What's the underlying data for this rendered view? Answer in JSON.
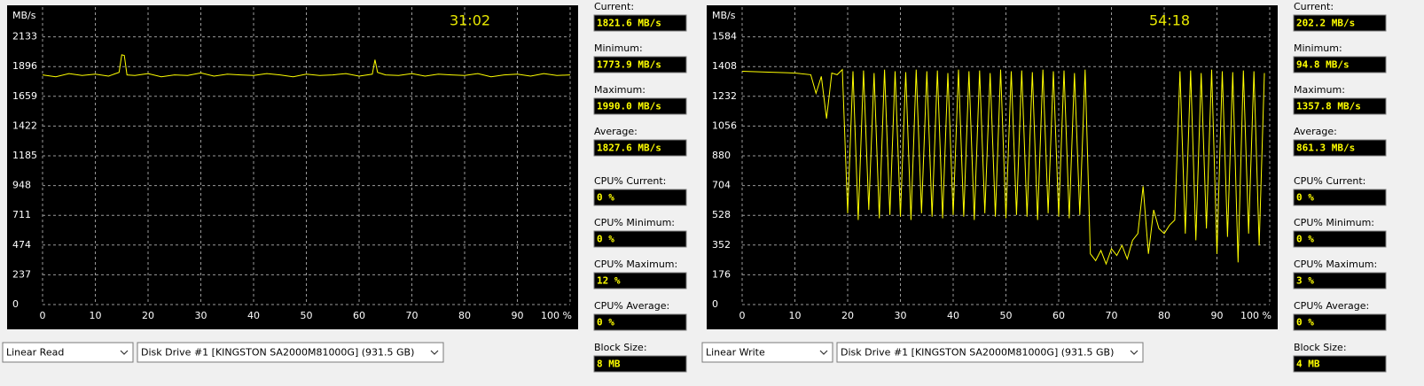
{
  "panels": [
    {
      "chart": {
        "type": "line",
        "ylabel": "MB/s",
        "timer": "31:02",
        "xlim": [
          0,
          100
        ],
        "ylim": [
          0,
          2370
        ],
        "xticks": [
          0,
          10,
          20,
          30,
          40,
          50,
          60,
          70,
          80,
          90,
          {
            "value": 100,
            "label": "100 %"
          }
        ],
        "yticks": [
          0,
          237,
          474,
          711,
          948,
          1185,
          1422,
          1659,
          1896,
          2133
        ],
        "grid": true,
        "series": [
          {
            "color": "#ffff00",
            "x": [
              0,
              2.5,
              5,
              7.5,
              10,
              12.5,
              14.5,
              15,
              15.5,
              16,
              17.5,
              20,
              22.5,
              25,
              27.5,
              30,
              32.5,
              35,
              37.5,
              40,
              42.5,
              45,
              47.5,
              50,
              52.5,
              55,
              57.5,
              60,
              62.5,
              63,
              63.5,
              65,
              67.5,
              70,
              72.5,
              75,
              77.5,
              80,
              82.5,
              85,
              87.5,
              90,
              92.5,
              95,
              97.5,
              100
            ],
            "values": [
              1830,
              1815,
              1840,
              1825,
              1835,
              1820,
              1850,
              1990,
              1985,
              1830,
              1825,
              1840,
              1815,
              1830,
              1825,
              1845,
              1820,
              1835,
              1830,
              1825,
              1840,
              1830,
              1815,
              1835,
              1825,
              1830,
              1840,
              1820,
              1835,
              1950,
              1850,
              1830,
              1825,
              1840,
              1820,
              1835,
              1830,
              1825,
              1840,
              1815,
              1830,
              1835,
              1820,
              1840,
              1825,
              1830
            ]
          }
        ]
      },
      "stats": [
        {
          "label": "Current:",
          "value": "1821.6 MB/s"
        },
        {
          "label": "Minimum:",
          "value": "1773.9 MB/s"
        },
        {
          "label": "Maximum:",
          "value": "1990.0 MB/s"
        },
        {
          "label": "Average:",
          "value": "1827.6 MB/s"
        },
        {
          "label": "CPU% Current:",
          "value": "0 %"
        },
        {
          "label": "CPU% Minimum:",
          "value": "0 %"
        },
        {
          "label": "CPU% Maximum:",
          "value": "12 %"
        },
        {
          "label": "CPU% Average:",
          "value": "0 %"
        },
        {
          "label": "Block Size:",
          "value": "8 MB"
        }
      ],
      "test": "Linear Read",
      "drive": "Disk Drive #1  [KINGSTON SA2000M81000G]  (931.5 GB)"
    },
    {
      "chart": {
        "type": "line",
        "ylabel": "MB/s",
        "timer": "54:18",
        "xlim": [
          0,
          100
        ],
        "ylim": [
          0,
          1760
        ],
        "xticks": [
          0,
          10,
          20,
          30,
          40,
          50,
          60,
          70,
          80,
          90,
          {
            "value": 100,
            "label": "100 %"
          }
        ],
        "yticks": [
          0,
          176,
          352,
          528,
          704,
          880,
          1056,
          1232,
          1408,
          1584
        ],
        "grid": true,
        "series": [
          {
            "color": "#ffff00",
            "x": [
              0,
              5,
              10,
              13,
              14,
              15,
              16,
              17,
              18,
              19,
              20,
              21,
              22,
              23,
              24,
              25,
              26,
              27,
              28,
              29,
              30,
              31,
              32,
              33,
              34,
              35,
              36,
              37,
              38,
              39,
              40,
              41,
              42,
              43,
              44,
              45,
              46,
              47,
              48,
              49,
              50,
              51,
              52,
              53,
              54,
              55,
              56,
              57,
              58,
              59,
              60,
              61,
              62,
              63,
              64,
              65,
              66,
              67,
              68,
              69,
              70,
              71,
              72,
              73,
              74,
              75,
              76,
              77,
              78,
              79,
              80,
              81,
              82,
              83,
              84,
              85,
              86,
              87,
              88,
              89,
              90,
              91,
              92,
              93,
              94,
              95,
              96,
              97,
              98,
              99
            ],
            "values": [
              1380,
              1375,
              1370,
              1360,
              1250,
              1350,
              1100,
              1370,
              1360,
              1390,
              540,
              1380,
              500,
              1385,
              560,
              1370,
              510,
              1390,
              530,
              1380,
              520,
              1375,
              500,
              1390,
              540,
              1380,
              520,
              1385,
              510,
              1370,
              530,
              1390,
              520,
              1380,
              500,
              1385,
              540,
              1370,
              520,
              1390,
              510,
              1380,
              530,
              1385,
              520,
              1375,
              500,
              1390,
              540,
              1380,
              520,
              1385,
              510,
              1370,
              530,
              1390,
              300,
              260,
              320,
              240,
              330,
              290,
              350,
              270,
              380,
              420,
              700,
              300,
              560,
              450,
              420,
              470,
              500,
              1380,
              420,
              1385,
              380,
              1370,
              450,
              1390,
              300,
              1380,
              400,
              1375,
              250,
              1385,
              420,
              1380,
              350,
              1370
            ]
          }
        ]
      },
      "stats": [
        {
          "label": "Current:",
          "value": "202.2 MB/s"
        },
        {
          "label": "Minimum:",
          "value": "94.8 MB/s"
        },
        {
          "label": "Maximum:",
          "value": "1357.8 MB/s"
        },
        {
          "label": "Average:",
          "value": "861.3 MB/s"
        },
        {
          "label": "CPU% Current:",
          "value": "0 %"
        },
        {
          "label": "CPU% Minimum:",
          "value": "0 %"
        },
        {
          "label": "CPU% Maximum:",
          "value": "3 %"
        },
        {
          "label": "CPU% Average:",
          "value": "0 %"
        },
        {
          "label": "Block Size:",
          "value": "4 MB"
        }
      ],
      "test": "Linear Write",
      "drive": "Disk Drive #1  [KINGSTON SA2000M81000G]  (931.5 GB)"
    }
  ]
}
